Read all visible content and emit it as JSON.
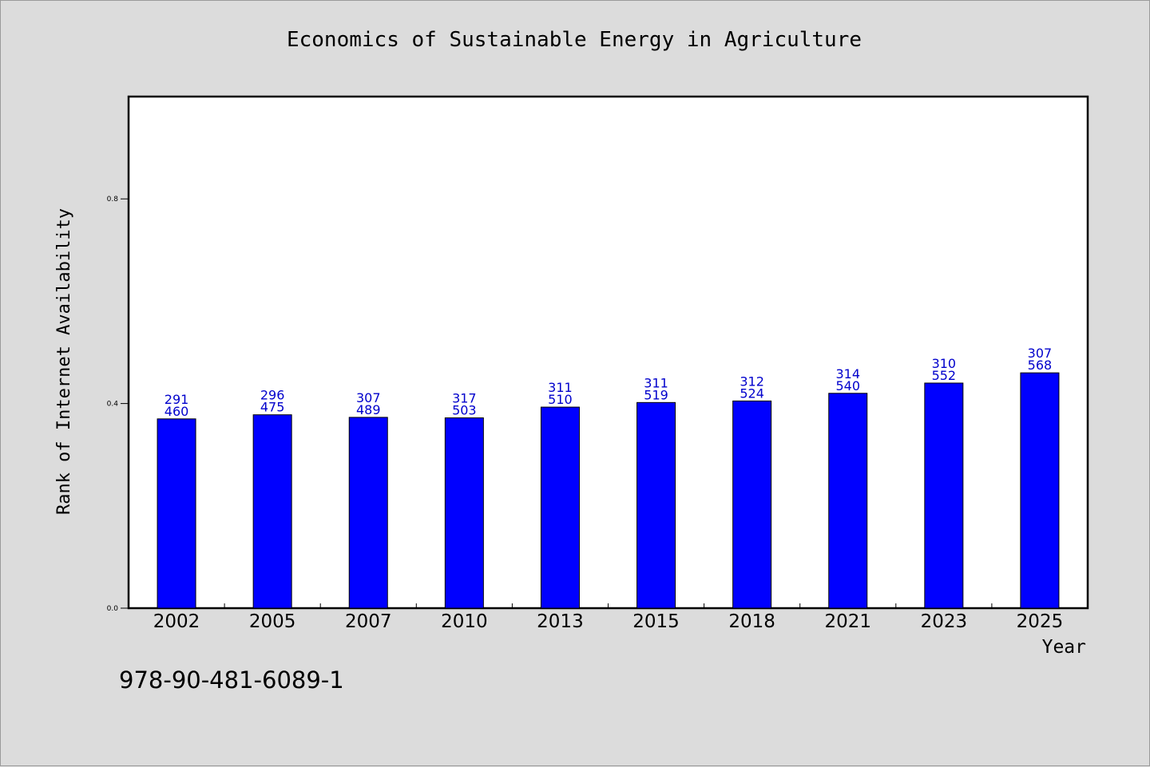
{
  "chart_data": {
    "type": "bar",
    "title": "Economics of Sustainable Energy in Agriculture",
    "xlabel": "Year",
    "ylabel": "Rank of Internet Availability",
    "categories": [
      "2002",
      "2005",
      "2007",
      "2010",
      "2013",
      "2015",
      "2018",
      "2021",
      "2023",
      "2025"
    ],
    "values": [
      0.37,
      0.378,
      0.373,
      0.372,
      0.393,
      0.402,
      0.405,
      0.42,
      0.44,
      0.46
    ],
    "label_top": [
      "291",
      "296",
      "307",
      "317",
      "311",
      "311",
      "312",
      "314",
      "310",
      "307"
    ],
    "label_bottom": [
      "460",
      "475",
      "489",
      "503",
      "510",
      "519",
      "524",
      "540",
      "552",
      "568"
    ],
    "yticks": [
      {
        "value": 0.0,
        "label": "0.0"
      },
      {
        "value": 0.4,
        "label": "0.4"
      },
      {
        "value": 0.8,
        "label": "0.8"
      }
    ],
    "ylim": [
      0,
      1.0
    ],
    "grid": false,
    "legend": "none",
    "bar_color": "#0000ff",
    "label_color": "#0000cc"
  },
  "footer": {
    "code": "978-90-481-6089-1"
  }
}
